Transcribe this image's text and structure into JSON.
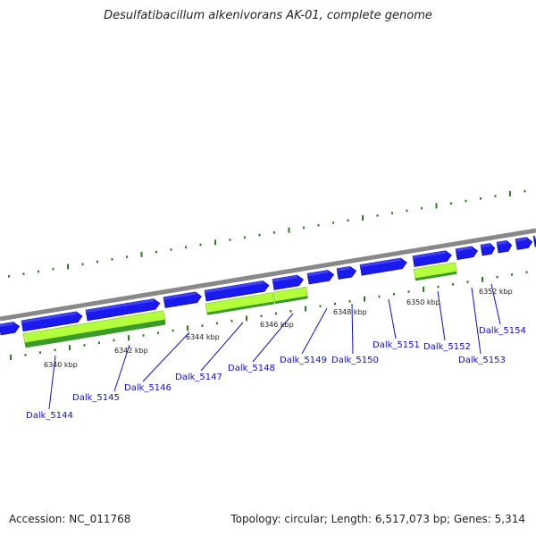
{
  "title": "Desulfatibacillum alkenivorans AK-01, complete genome",
  "footer": {
    "accession": "Accession: NC_011768",
    "summary": "Topology: circular; Length: 6,517,073 bp; Genes: 5,314"
  },
  "colors": {
    "backbone": "#888888",
    "cds_forward": "#1a1aee",
    "rrna_light": "#b4ff3c",
    "rrna_dark": "#3a9a2a",
    "tick": "#2e7d1e",
    "label": "#1010c0"
  },
  "kbp_ticks": [
    "6340 kbp",
    "6342 kbp",
    "6344 kbp",
    "6346 kbp",
    "6348 kbp",
    "6350 kbp",
    "6352 kbp"
  ],
  "genes": [
    "Dalk_5144",
    "Dalk_5145",
    "Dalk_5146",
    "Dalk_5147",
    "Dalk_5148",
    "Dalk_5149",
    "Dalk_5150",
    "Dalk_5151",
    "Dalk_5152",
    "Dalk_5153",
    "Dalk_5154"
  ]
}
